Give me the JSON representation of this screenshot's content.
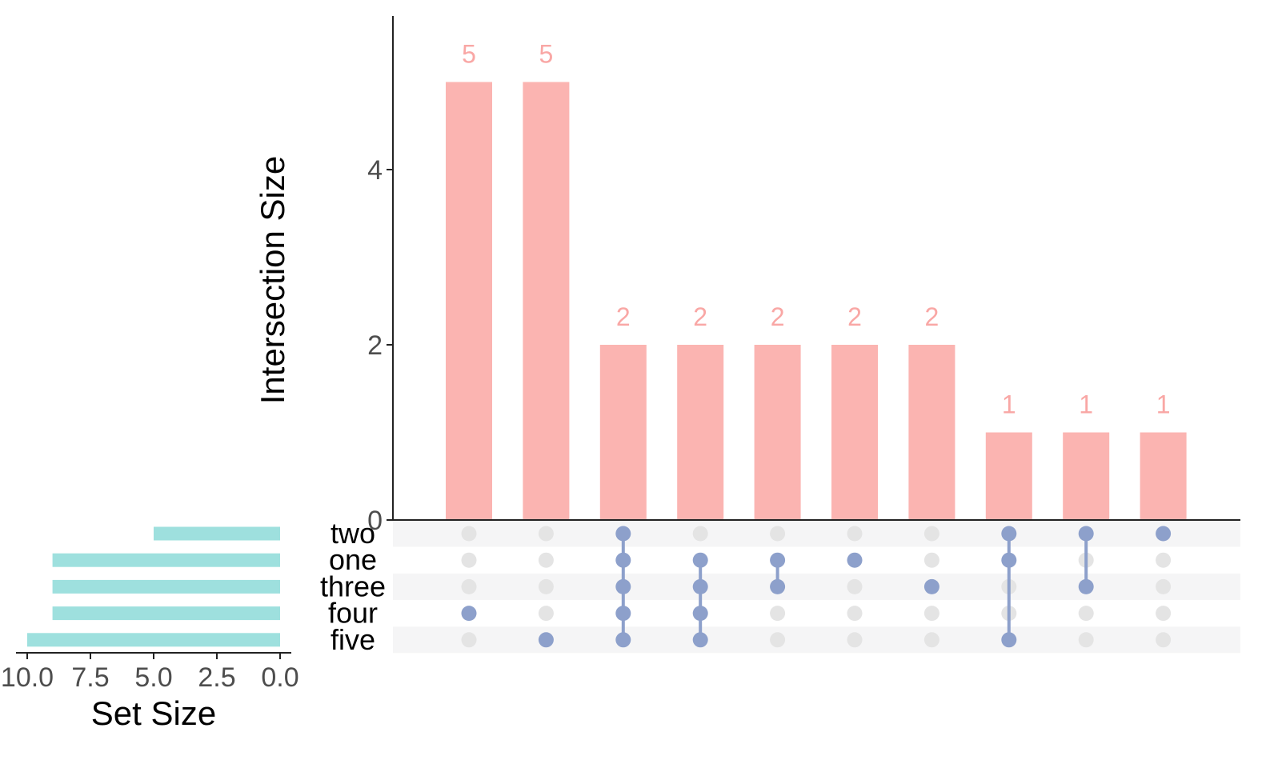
{
  "colors": {
    "bar": "#FBB4B1",
    "bar_label": "#F9A7A5",
    "set_bar": "#9EE0DE",
    "dot_on": "#8DA0CB",
    "dot_off": "#E4E4E4",
    "stripe": "#F5F5F6",
    "axis": "#222222",
    "tick_text": "#4D4D4D"
  },
  "chart_data": [
    {
      "type": "bar",
      "name": "intersections",
      "ylabel": "Intersection Size",
      "ylim": [
        0,
        5.8
      ],
      "yticks": [
        0,
        2,
        4
      ],
      "values": [
        5,
        5,
        2,
        2,
        2,
        2,
        2,
        1,
        1,
        1
      ],
      "data_labels": [
        "5",
        "5",
        "2",
        "2",
        "2",
        "2",
        "2",
        "1",
        "1",
        "1"
      ],
      "grid": false
    },
    {
      "type": "bar",
      "orientation": "horizontal",
      "name": "set sizes",
      "xlabel": "Set Size",
      "xlim": [
        10.5,
        0
      ],
      "xticks": [
        10.0,
        7.5,
        5.0,
        2.5,
        0.0
      ],
      "xtick_labels": [
        "10.0",
        "7.5",
        "5.0",
        "2.5",
        "0.0"
      ],
      "categories": [
        "two",
        "one",
        "three",
        "four",
        "five"
      ],
      "values": [
        5,
        9,
        9,
        9,
        10
      ]
    },
    {
      "type": "matrix",
      "name": "membership",
      "sets": [
        "two",
        "one",
        "three",
        "four",
        "five"
      ],
      "combinations": [
        [
          "four"
        ],
        [
          "five"
        ],
        [
          "two",
          "one",
          "three",
          "four",
          "five"
        ],
        [
          "one",
          "three",
          "four",
          "five"
        ],
        [
          "one",
          "three"
        ],
        [
          "one"
        ],
        [
          "three"
        ],
        [
          "two",
          "one",
          "five"
        ],
        [
          "two",
          "three"
        ],
        [
          "two"
        ]
      ]
    }
  ]
}
